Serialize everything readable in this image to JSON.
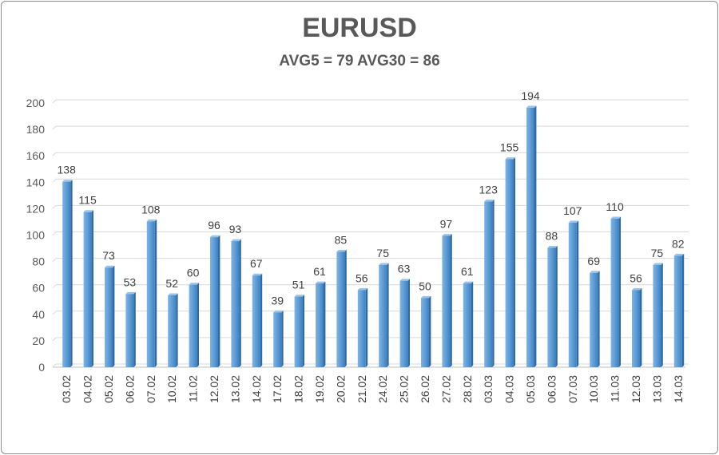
{
  "chart_data": {
    "type": "bar",
    "title": "EURUSD",
    "subtitle": "AVG5 = 79 AVG30 = 86",
    "xlabel": "",
    "ylabel": "",
    "ylim": [
      0,
      200
    ],
    "yticks": [
      0,
      20,
      40,
      60,
      80,
      100,
      120,
      140,
      160,
      180,
      200
    ],
    "grid": true,
    "legend": "none",
    "bar_color": "#5b9bd5",
    "categories": [
      "03.02",
      "04.02",
      "05.02",
      "06.02",
      "07.02",
      "10.02",
      "11.02",
      "12.02",
      "13.02",
      "14.02",
      "17.02",
      "18.02",
      "19.02",
      "20.02",
      "21.02",
      "24.02",
      "25.02",
      "26.02",
      "27.02",
      "28.02",
      "03.03",
      "04.03",
      "05.03",
      "06.03",
      "07.03",
      "10.03",
      "11.03",
      "12.03",
      "13.03",
      "14.03"
    ],
    "values": [
      138,
      115,
      73,
      53,
      108,
      52,
      60,
      96,
      93,
      67,
      39,
      51,
      61,
      85,
      56,
      75,
      63,
      50,
      97,
      61,
      123,
      155,
      194,
      88,
      107,
      69,
      110,
      56,
      75,
      82
    ]
  }
}
